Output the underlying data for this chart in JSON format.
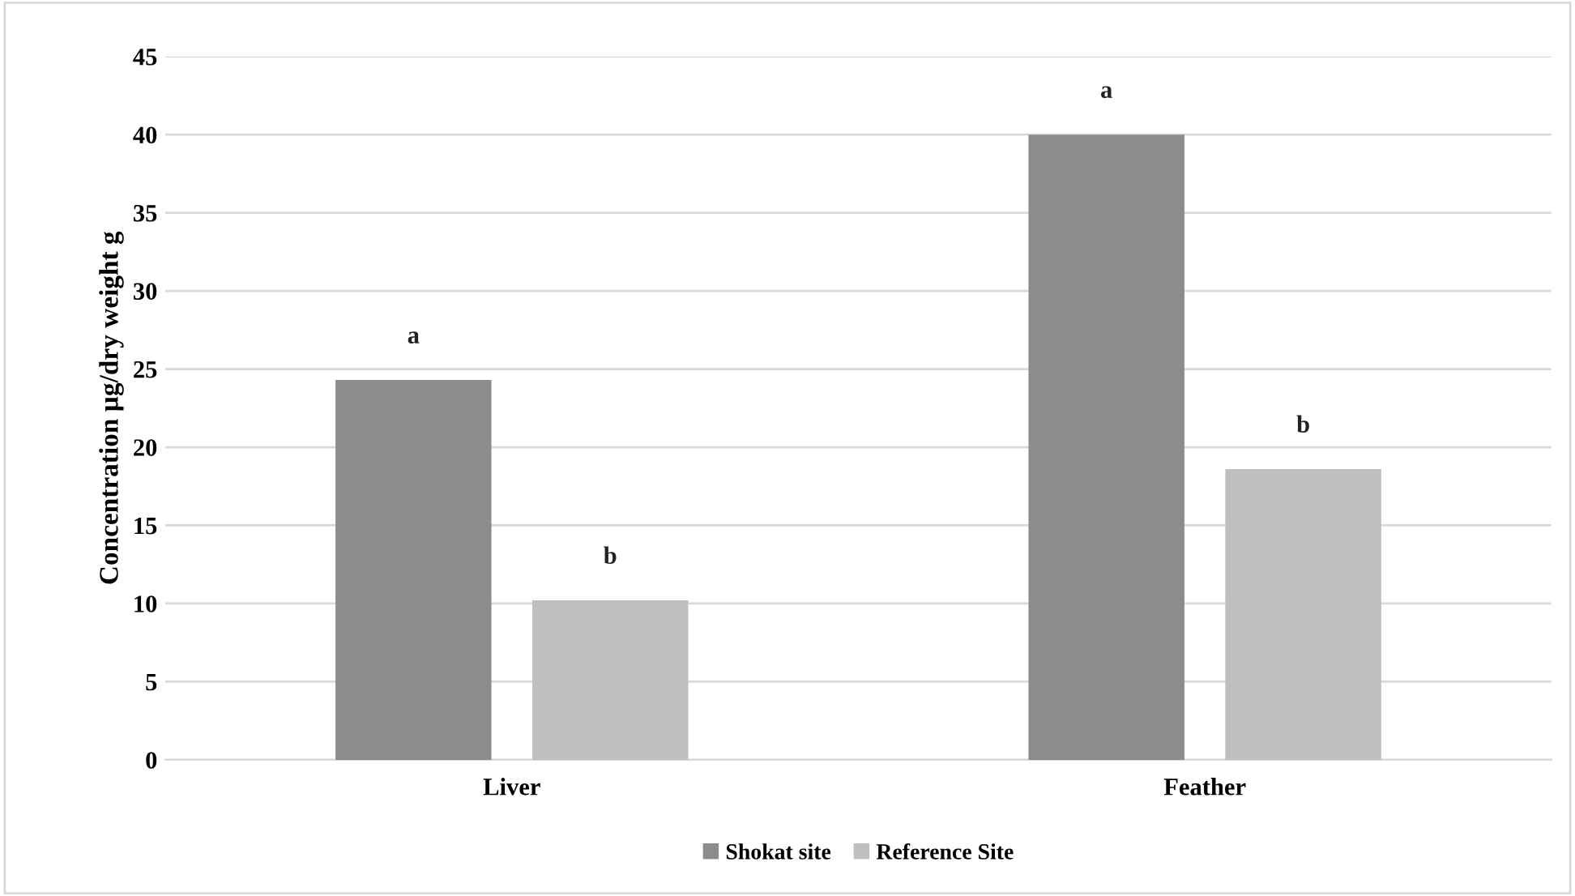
{
  "chart_data": {
    "type": "bar",
    "ylabel": "Concentration µg/dry weight g",
    "categories": [
      "Liver",
      "Feather"
    ],
    "series": [
      {
        "name": "Shokat site",
        "color": "#8c8c8c",
        "values": [
          24.3,
          40
        ],
        "value_labels": [
          "a",
          "a"
        ]
      },
      {
        "name": "Reference Site",
        "color": "#bfbfbf",
        "values": [
          10.2,
          18.6
        ],
        "value_labels": [
          "b",
          "b"
        ]
      }
    ],
    "ylim": [
      0,
      45
    ],
    "yticks": [
      0,
      5,
      10,
      15,
      20,
      25,
      30,
      35,
      40,
      45
    ],
    "grid": "y",
    "legend": "bottom"
  }
}
